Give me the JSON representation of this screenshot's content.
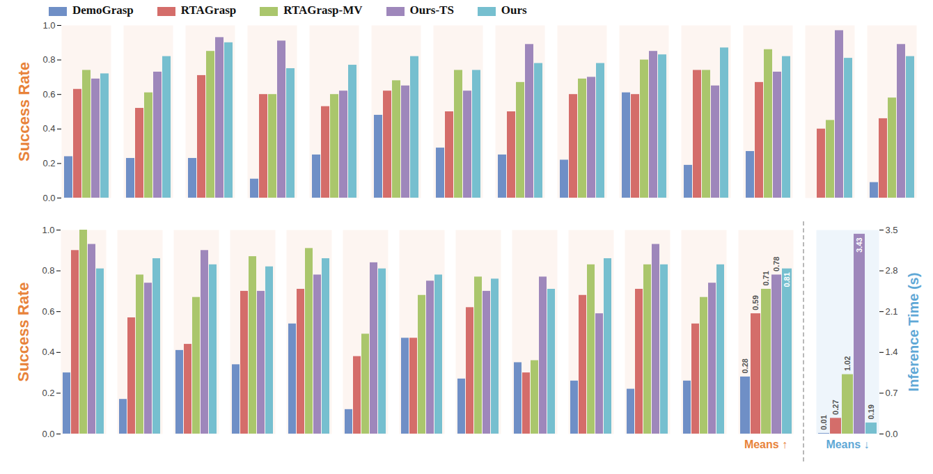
{
  "chart_data": [
    {
      "type": "bar",
      "y_label": "Success Rate",
      "legend": "top",
      "categories": [
        null,
        null,
        null,
        null,
        null,
        null,
        null,
        null,
        null,
        null,
        null,
        null,
        null,
        null
      ],
      "ylim": [
        0,
        1
      ],
      "yticks": [
        {
          "value": 0,
          "label": "0.0"
        },
        0.2,
        0.4,
        0.6,
        0.8,
        {
          "value": 1,
          "label": "1.0"
        }
      ],
      "series": [
        {
          "name": "DemoGrasp",
          "color": "#6f8fc6",
          "values": [
            0.24,
            0.23,
            0.23,
            0.11,
            0.25,
            0.48,
            0.29,
            0.25,
            0.22,
            0.61,
            0.19,
            0.27,
            0,
            0.09
          ]
        },
        {
          "name": "RTAGrasp",
          "color": "#d46d6a",
          "values": [
            0.63,
            0.52,
            0.71,
            0.6,
            0.53,
            0.62,
            0.5,
            0.5,
            0.6,
            0.6,
            0.74,
            0.67,
            0.4,
            0.46
          ]
        },
        {
          "name": "RTAGrasp-MV",
          "color": "#aac66c",
          "values": [
            0.74,
            0.61,
            0.85,
            0.6,
            0.6,
            0.68,
            0.74,
            0.67,
            0.69,
            0.8,
            0.74,
            0.86,
            0.45,
            0.58
          ]
        },
        {
          "name": "Ours-TS",
          "color": "#9e87bb",
          "values": [
            0.69,
            0.73,
            0.93,
            0.91,
            0.62,
            0.65,
            0.62,
            0.89,
            0.7,
            0.85,
            0.65,
            0.73,
            0.97,
            0.89
          ]
        },
        {
          "name": "Ours",
          "color": "#76bfcf",
          "values": [
            0.72,
            0.82,
            0.9,
            0.75,
            0.77,
            0.82,
            0.74,
            0.78,
            0.78,
            0.83,
            0.87,
            0.82,
            0.81,
            0.82
          ]
        }
      ]
    },
    {
      "type": "bar",
      "y_label": "Success Rate",
      "categories": [
        null,
        null,
        null,
        null,
        null,
        null,
        null,
        null,
        null,
        null,
        null,
        null
      ],
      "ylim": [
        0,
        1
      ],
      "yticks": [
        {
          "value": 0,
          "label": "0.0"
        },
        0.2,
        0.4,
        0.6,
        0.8,
        {
          "value": 1,
          "label": "1.0"
        }
      ],
      "series": [
        {
          "name": "DemoGrasp",
          "color": "#6f8fc6",
          "values": [
            0.3,
            0.17,
            0.41,
            0.34,
            0.54,
            0.12,
            0.47,
            0.27,
            0.35,
            0.26,
            0.22,
            0.26
          ]
        },
        {
          "name": "RTAGrasp",
          "color": "#d46d6a",
          "values": [
            0.9,
            0.57,
            0.44,
            0.7,
            0.71,
            0.38,
            0.47,
            0.62,
            0.3,
            0.68,
            0.71,
            0.54
          ]
        },
        {
          "name": "RTAGrasp-MV",
          "color": "#aac66c",
          "values": [
            1.0,
            0.78,
            0.67,
            0.87,
            0.91,
            0.49,
            0.68,
            0.77,
            0.36,
            0.83,
            0.83,
            0.67
          ]
        },
        {
          "name": "Ours-TS",
          "color": "#9e87bb",
          "values": [
            0.93,
            0.74,
            0.9,
            0.7,
            0.78,
            0.84,
            0.75,
            0.7,
            0.77,
            0.59,
            0.93,
            0.74
          ]
        },
        {
          "name": "Ours",
          "color": "#76bfcf",
          "values": [
            0.81,
            0.86,
            0.83,
            0.82,
            0.86,
            0.81,
            0.78,
            0.76,
            0.71,
            0.86,
            0.83,
            0.83
          ]
        }
      ]
    },
    {
      "type": "bar",
      "categories": [
        "Means ↑"
      ],
      "ylim": [
        0,
        1
      ],
      "tick_labels": false,
      "data_labels": true,
      "series": [
        {
          "name": "DemoGrasp",
          "color": "#6f8fc6",
          "values": [
            0.28
          ]
        },
        {
          "name": "RTAGrasp",
          "color": "#d46d6a",
          "values": [
            0.59
          ]
        },
        {
          "name": "RTAGrasp-MV",
          "color": "#aac66c",
          "values": [
            0.71
          ]
        },
        {
          "name": "Ours-TS",
          "color": "#9e87bb",
          "values": [
            0.78
          ]
        },
        {
          "name": "Ours",
          "color": "#76bfcf",
          "values": [
            0.81
          ]
        }
      ]
    },
    {
      "type": "bar",
      "y_label": "Inference Time (s)",
      "categories": [
        "Means ↓"
      ],
      "ylim": [
        0,
        3.5
      ],
      "yticks": [
        {
          "value": 0,
          "label": "0.0"
        },
        0.7,
        1.4,
        2.1,
        2.8,
        3.5
      ],
      "data_labels": true,
      "series": [
        {
          "name": "DemoGrasp",
          "color": "#6f8fc6",
          "values": [
            0.01
          ]
        },
        {
          "name": "RTAGrasp",
          "color": "#d46d6a",
          "values": [
            0.27
          ]
        },
        {
          "name": "RTAGrasp-MV",
          "color": "#aac66c",
          "values": [
            1.02
          ]
        },
        {
          "name": "Ours-TS",
          "color": "#9e87bb",
          "values": [
            3.43
          ]
        },
        {
          "name": "Ours",
          "color": "#76bfcf",
          "values": [
            0.19
          ]
        }
      ]
    }
  ]
}
